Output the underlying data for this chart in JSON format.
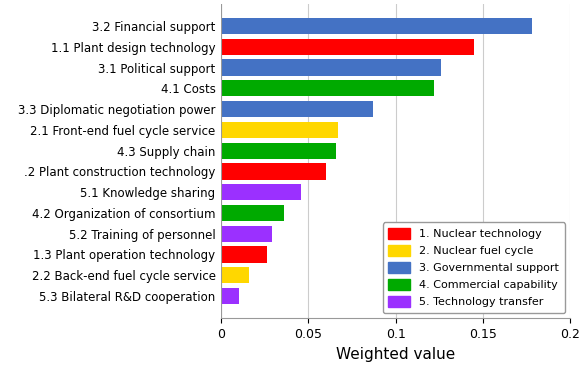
{
  "categories": [
    "5.3 Bilateral R&D cooperation",
    "2.2 Back-end fuel cycle service",
    "1.3 Plant operation technology",
    "5.2 Training of personnel",
    "4.2 Organization of consortium",
    "5.1 Knowledge sharing",
    ".2 Plant construction technology",
    "4.3 Supply chain",
    "2.1 Front-end fuel cycle service",
    "3.3 Diplomatic negotiation power",
    "4.1 Costs",
    "3.1 Political support",
    "1.1 Plant design technology",
    "3.2 Financial support"
  ],
  "values": [
    0.01,
    0.016,
    0.026,
    0.029,
    0.036,
    0.046,
    0.06,
    0.066,
    0.067,
    0.087,
    0.122,
    0.126,
    0.145,
    0.178
  ],
  "colors": [
    "#9B30FF",
    "#FFD700",
    "#FF0000",
    "#9B30FF",
    "#00AA00",
    "#9B30FF",
    "#FF0000",
    "#00AA00",
    "#FFD700",
    "#4472C4",
    "#00AA00",
    "#4472C4",
    "#FF0000",
    "#4472C4"
  ],
  "xlabel": "Weighted value",
  "xlim": [
    0,
    0.2
  ],
  "xticks": [
    0,
    0.05,
    0.1,
    0.15,
    0.2
  ],
  "xtick_labels": [
    "0",
    "0.05",
    "0.1",
    "0.15",
    "0.2"
  ],
  "legend_labels": [
    "1. Nuclear technology",
    "2. Nuclear fuel cycle",
    "3. Governmental support",
    "4. Commercial capability",
    "5. Technology transfer"
  ],
  "legend_colors": [
    "#FF0000",
    "#FFD700",
    "#4472C4",
    "#00AA00",
    "#9B30FF"
  ],
  "figsize": [
    5.82,
    3.66
  ],
  "dpi": 100,
  "bar_height": 0.78
}
